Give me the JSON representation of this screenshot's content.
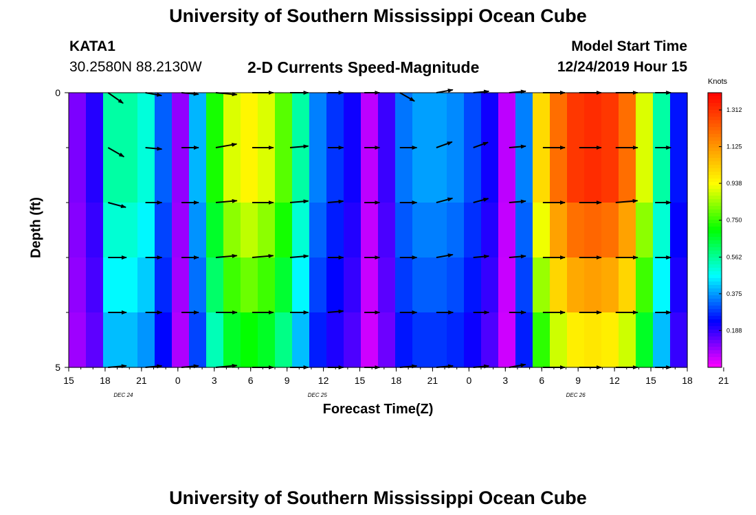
{
  "header": {
    "title": "University of Southern Mississippi Ocean Cube",
    "station": "KATA1",
    "coords": "30.2580N 88.2130W",
    "product": "2-D Currents Speed-Magnitude",
    "model_label": "Model Start Time",
    "model_time": "12/24/2019 Hour 15",
    "footer_title": "University of Southern Mississippi Ocean Cube"
  },
  "chart_data": {
    "type": "heatmap",
    "title": "2-D Currents Speed-Magnitude",
    "xlabel": "Forecast Time(Z)",
    "ylabel": "Depth (ft)",
    "x_hours": [
      0,
      51
    ],
    "ylim": [
      0,
      5
    ],
    "y_ticks": [
      "0",
      "5"
    ],
    "x_tick_labels": [
      "15",
      "18",
      "21",
      "0",
      "3",
      "6",
      "9",
      "12",
      "15",
      "18",
      "21",
      "0",
      "3",
      "6",
      "9",
      "12",
      "15",
      "18",
      "21"
    ],
    "date_labels": [
      {
        "text": "DEC 24",
        "hour": 4.5
      },
      {
        "text": "DEC 25",
        "hour": 20.5
      },
      {
        "text": "DEC 26",
        "hour": 41.8
      }
    ],
    "colorbar": {
      "unit": "Knots",
      "min": 0,
      "max": 1.4,
      "ticks": [
        "1.312",
        "1.125",
        "0.938",
        "0.750",
        "0.562",
        "0.375",
        "0.188"
      ],
      "tick_values": [
        1.312,
        1.125,
        0.938,
        0.75,
        0.562,
        0.375,
        0.188
      ],
      "colors": [
        "#ff00ff",
        "#0000ff",
        "#00ffff",
        "#00ff00",
        "#ffff00",
        "#ff8000",
        "#ff0000"
      ]
    },
    "speed_profile": [
      [
        0,
        0.12
      ],
      [
        1,
        0.2
      ],
      [
        2,
        0.55
      ],
      [
        3,
        0.55
      ],
      [
        4,
        0.5
      ],
      [
        5,
        0.32
      ],
      [
        6,
        0.1
      ],
      [
        7,
        0.4
      ],
      [
        8,
        0.72
      ],
      [
        9,
        0.9
      ],
      [
        10,
        0.95
      ],
      [
        11,
        0.9
      ],
      [
        12,
        0.78
      ],
      [
        13,
        0.55
      ],
      [
        14,
        0.35
      ],
      [
        15,
        0.28
      ],
      [
        16,
        0.22
      ],
      [
        17,
        0.06
      ],
      [
        18,
        0.18
      ],
      [
        19,
        0.34
      ],
      [
        20,
        0.38
      ],
      [
        21,
        0.38
      ],
      [
        22,
        0.36
      ],
      [
        23,
        0.3
      ],
      [
        24,
        0.22
      ],
      [
        25,
        0.06
      ],
      [
        26,
        0.35
      ],
      [
        27,
        1.0
      ],
      [
        28,
        1.2
      ],
      [
        29,
        1.3
      ],
      [
        30,
        1.32
      ],
      [
        31,
        1.3
      ],
      [
        32,
        1.2
      ],
      [
        33,
        0.9
      ],
      [
        34,
        0.55
      ],
      [
        35,
        0.25
      ],
      [
        36,
        0.3
      ]
    ],
    "vector_hours": [
      4,
      7,
      10,
      13,
      16,
      19,
      22,
      25,
      28,
      31,
      34,
      37,
      40,
      43,
      46,
      49
    ],
    "vector_depths": [
      0,
      1,
      2,
      3,
      4,
      5
    ],
    "vector_directions_deg": [
      [
        -35,
        -10,
        -5,
        -5,
        0,
        0,
        0,
        0,
        -30,
        10,
        5,
        5,
        0,
        0,
        0,
        0
      ],
      [
        -30,
        -5,
        0,
        10,
        0,
        5,
        0,
        0,
        0,
        20,
        20,
        5,
        0,
        0,
        0,
        0
      ],
      [
        -15,
        0,
        0,
        5,
        0,
        5,
        5,
        0,
        0,
        15,
        15,
        5,
        0,
        0,
        5,
        0
      ],
      [
        0,
        0,
        0,
        5,
        5,
        5,
        0,
        0,
        0,
        10,
        5,
        5,
        0,
        0,
        0,
        0
      ],
      [
        0,
        0,
        0,
        0,
        0,
        0,
        5,
        0,
        0,
        0,
        0,
        0,
        0,
        0,
        0,
        0
      ],
      [
        5,
        5,
        5,
        5,
        0,
        0,
        0,
        0,
        5,
        5,
        5,
        10,
        0,
        0,
        0,
        0
      ]
    ]
  }
}
